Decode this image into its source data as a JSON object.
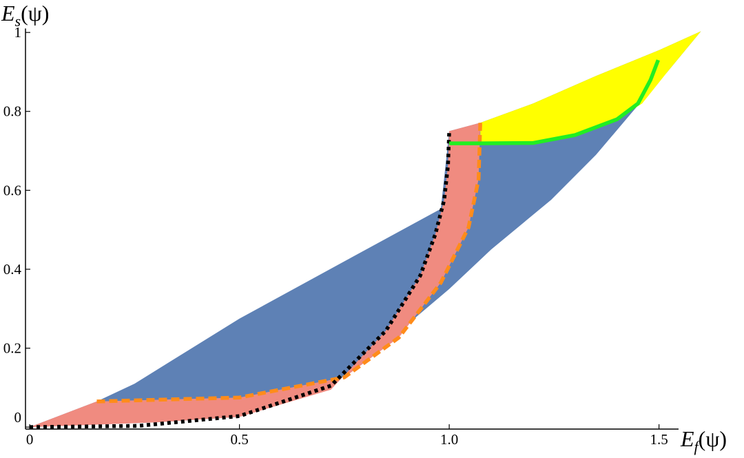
{
  "chart_data": {
    "type": "region",
    "xlabel": {
      "main": "E",
      "sub": "f",
      "arg": "(ψ)"
    },
    "ylabel": {
      "main": "E",
      "sub": "s",
      "arg": "(ψ)"
    },
    "xlim": [
      -0.01,
      1.6
    ],
    "ylim": [
      -0.005,
      1.01
    ],
    "xticks": [
      0,
      0.5,
      {
        "value": 1,
        "label": "1.0"
      },
      1.5
    ],
    "yticks": [
      0,
      0.2,
      0.4,
      0.6,
      0.8,
      1
    ],
    "regions": [
      {
        "color": "#5e81b5",
        "x": [
          0,
          0.16,
          0.25,
          0.5,
          0.75,
          0.98,
          1.0,
          1.074,
          1.2,
          1.35,
          1.5,
          1.6,
          1.52,
          1.44,
          1.35,
          1.243,
          1.1,
          1.0,
          0.9,
          0.8,
          0.7,
          0.5,
          0.3,
          0
        ],
        "y": [
          0,
          0.065,
          0.11,
          0.275,
          0.42,
          0.553,
          0.75,
          0.771,
          0.82,
          0.89,
          0.955,
          1.003,
          0.9,
          0.803,
          0.69,
          0.576,
          0.45,
          0.35,
          0.26,
          0.165,
          0.095,
          0.026,
          0.012,
          0
        ]
      },
      {
        "color": "#ffff00",
        "x": [
          1.074,
          1.2,
          1.35,
          1.5,
          1.6,
          1.52,
          1.46,
          1.4,
          1.3,
          1.2,
          1.074
        ],
        "y": [
          0.771,
          0.82,
          0.89,
          0.955,
          1.003,
          0.9,
          0.82,
          0.78,
          0.74,
          0.72,
          0.719
        ]
      },
      {
        "color": "#f08b80",
        "x": [
          0,
          0.16,
          0.5,
          0.75,
          0.88,
          0.98,
          1.046,
          1.07,
          1.074,
          1.0,
          0.997,
          0.988,
          0.967,
          0.931,
          0.849,
          0.718,
          0.5,
          0.3,
          0
        ],
        "y": [
          0,
          0.065,
          0.075,
          0.126,
          0.227,
          0.366,
          0.506,
          0.628,
          0.771,
          0.75,
          0.663,
          0.576,
          0.489,
          0.384,
          0.244,
          0.095,
          0.026,
          0.012,
          0
        ]
      }
    ],
    "curves": [
      {
        "color": "#ff8c1a",
        "style": "dashed",
        "x": [
          0.16,
          0.5,
          0.75,
          0.88,
          0.98,
          1.046,
          1.07,
          1.074
        ],
        "y": [
          0.065,
          0.075,
          0.126,
          0.227,
          0.366,
          0.506,
          0.628,
          0.771
        ]
      },
      {
        "color": "#000000",
        "style": "dotted",
        "x": [
          0,
          0.258,
          0.5,
          0.718,
          0.849,
          0.931,
          0.967,
          0.988,
          0.997,
          1.0
        ],
        "y": [
          0,
          0.003,
          0.028,
          0.105,
          0.244,
          0.384,
          0.489,
          0.576,
          0.663,
          0.75
        ]
      },
      {
        "color": "#22ee22",
        "style": "solid",
        "x": [
          1.0,
          1.074,
          1.2,
          1.3,
          1.4,
          1.45,
          1.48,
          1.498
        ],
        "y": [
          0.719,
          0.719,
          0.72,
          0.74,
          0.78,
          0.82,
          0.88,
          0.93
        ]
      }
    ]
  }
}
